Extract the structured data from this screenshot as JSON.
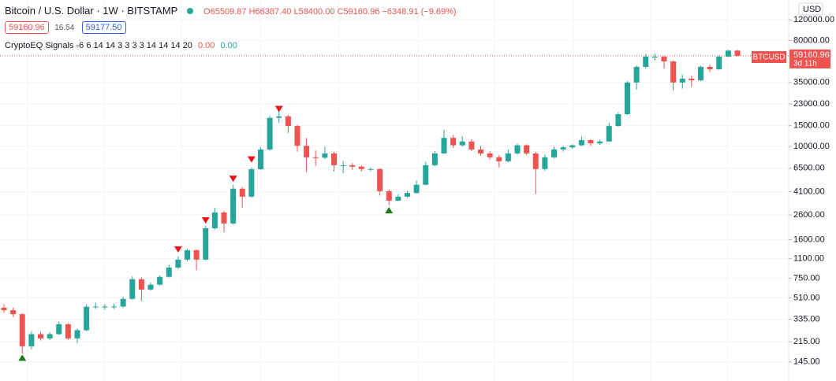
{
  "legend": {
    "title": "Bitcoin / U.S. Dollar · 1W · BITSTAMP",
    "ohlc": [
      "O65509.87",
      "H66387.40",
      "L58400.00",
      "C59160.96",
      "−6348.91 (−9.69%)"
    ],
    "bid": "59160.96",
    "spread": "16.54",
    "ask": "59177.50",
    "indicator": "CryptoEQ Signals",
    "indicator_params": "-6 6 14 14 3 3 3 3 14 14 14 20",
    "indicator_values": [
      "0.00",
      "0.00"
    ]
  },
  "price_scale": {
    "currency": "USD",
    "symbol": "BTCUSD",
    "last_price": "59160.96",
    "countdown": "3d 11h"
  },
  "chart_data": {
    "type": "candlestick",
    "log_scale": true,
    "grid": true,
    "up_color": "#26a69a",
    "down_color": "#ef5350",
    "sell_color": "#e8141c",
    "buy_color": "#1b7a1b",
    "ylim": [
      106,
      177000
    ],
    "yticks": [
      {
        "value": 145,
        "label": "145.00"
      },
      {
        "value": 215,
        "label": "215.00"
      },
      {
        "value": 335,
        "label": "335.00"
      },
      {
        "value": 510,
        "label": "510.00"
      },
      {
        "value": 750,
        "label": "750.00"
      },
      {
        "value": 1100,
        "label": "1100.00"
      },
      {
        "value": 1600,
        "label": "1600.00"
      },
      {
        "value": 2600,
        "label": "2600.00"
      },
      {
        "value": 4100,
        "label": "4100.00"
      },
      {
        "value": 6500,
        "label": "6500.00"
      },
      {
        "value": 10000,
        "label": "10000.00"
      },
      {
        "value": 15000,
        "label": "15000.00"
      },
      {
        "value": 23000,
        "label": "23000.00"
      },
      {
        "value": 35000,
        "label": "35000.00"
      },
      {
        "value": 80000,
        "label": "80000.00"
      },
      {
        "value": 120000,
        "label": "120000.00"
      }
    ],
    "open": [
      420,
      400,
      370,
      197,
      250,
      230,
      250,
      304,
      230,
      270,
      428,
      430,
      430,
      430,
      500,
      735,
      600,
      660,
      770,
      925,
      1080,
      1300,
      1080,
      2000,
      2730,
      2200,
      4350,
      3720,
      6380,
      9400,
      17500,
      18000,
      14900,
      10100,
      8060,
      8000,
      8700,
      6900,
      6900,
      6700,
      6400,
      6400,
      4140,
      3440,
      3720,
      4000,
      4700,
      6900,
      8700,
      11800,
      10200,
      11000,
      9400,
      8700,
      8060,
      7450,
      8700,
      10200,
      8700,
      6400,
      8060,
      9400,
      9800,
      10200,
      11300,
      10600,
      11000,
      14900,
      18800,
      35000,
      47600,
      58200,
      58200,
      53000,
      35000,
      37800,
      36600,
      47600,
      45400,
      58200,
      65509.87
    ],
    "high": [
      450,
      420,
      380,
      265,
      262,
      260,
      320,
      310,
      280,
      450,
      465,
      450,
      455,
      520,
      780,
      760,
      690,
      790,
      980,
      1150,
      1340,
      1320,
      2100,
      2980,
      2800,
      4700,
      4500,
      6600,
      9800,
      18200,
      19700,
      18500,
      15200,
      11800,
      9200,
      9900,
      9000,
      7500,
      7200,
      6900,
      6600,
      6500,
      4300,
      3900,
      4150,
      5100,
      7400,
      9100,
      13800,
      12500,
      12200,
      11500,
      10100,
      9100,
      8400,
      9400,
      10500,
      10400,
      9000,
      8500,
      9900,
      10100,
      10400,
      12000,
      11500,
      11400,
      15900,
      19500,
      36000,
      49000,
      61700,
      61800,
      59000,
      54000,
      41000,
      40000,
      48500,
      50000,
      59500,
      66800,
      66387.4
    ],
    "low": [
      380,
      350,
      170,
      185,
      220,
      222,
      245,
      222,
      210,
      265,
      410,
      405,
      410,
      420,
      490,
      480,
      590,
      650,
      760,
      900,
      1050,
      880,
      1060,
      1950,
      1850,
      2150,
      2980,
      3650,
      6300,
      9200,
      15800,
      13000,
      9000,
      6000,
      6800,
      7800,
      6100,
      5900,
      6300,
      6100,
      6150,
      3800,
      3150,
      3400,
      3650,
      3950,
      4650,
      6800,
      8600,
      9700,
      9900,
      9100,
      8300,
      7700,
      6600,
      7300,
      8500,
      8400,
      3900,
      6200,
      7900,
      9000,
      9500,
      10000,
      10100,
      10300,
      10900,
      14700,
      18500,
      30500,
      46000,
      54000,
      46000,
      30000,
      31000,
      32000,
      36000,
      43000,
      45000,
      57500,
      58400.0
    ],
    "close": [
      400,
      370,
      197,
      250,
      230,
      250,
      304,
      230,
      270,
      428,
      430,
      430,
      430,
      500,
      735,
      600,
      660,
      770,
      925,
      1080,
      1300,
      1080,
      2000,
      2730,
      2200,
      4350,
      3720,
      6380,
      9400,
      17500,
      18000,
      14900,
      10100,
      8060,
      8000,
      8700,
      6900,
      6900,
      6700,
      6400,
      6400,
      4140,
      3440,
      3720,
      4000,
      4700,
      6900,
      8700,
      11800,
      10200,
      11000,
      9400,
      8700,
      8060,
      7450,
      8700,
      10200,
      8700,
      6400,
      8060,
      9400,
      9800,
      10200,
      11300,
      10600,
      11000,
      14900,
      18800,
      35000,
      47600,
      58200,
      58200,
      53000,
      35000,
      37800,
      36600,
      47600,
      45400,
      58200,
      65509.87,
      59160.96
    ],
    "sell_signals": [
      null,
      null,
      null,
      null,
      null,
      null,
      null,
      null,
      null,
      null,
      null,
      null,
      null,
      null,
      null,
      null,
      null,
      null,
      null,
      1300,
      null,
      null,
      2300,
      null,
      null,
      5200,
      null,
      7600,
      null,
      null,
      20500,
      null,
      null,
      null,
      null,
      null,
      null,
      null,
      null,
      null,
      null,
      null,
      null,
      null,
      null,
      null,
      null,
      null,
      null,
      null,
      null,
      null,
      null,
      null,
      null,
      null,
      null,
      null,
      null,
      null,
      null,
      null,
      null,
      null,
      null,
      null,
      null,
      null,
      null,
      null,
      null,
      null,
      null,
      null,
      null,
      null,
      null,
      null,
      null,
      null,
      null
    ],
    "buy_signals": [
      null,
      null,
      160,
      null,
      null,
      null,
      null,
      null,
      null,
      null,
      null,
      null,
      null,
      null,
      null,
      null,
      null,
      null,
      null,
      null,
      null,
      null,
      null,
      null,
      null,
      null,
      null,
      null,
      null,
      null,
      null,
      null,
      null,
      null,
      null,
      null,
      null,
      null,
      null,
      null,
      null,
      null,
      2900,
      null,
      null,
      null,
      null,
      null,
      null,
      null,
      null,
      null,
      null,
      null,
      null,
      null,
      null,
      null,
      null,
      null,
      null,
      null,
      null,
      null,
      null,
      null,
      null,
      null,
      null,
      null,
      null,
      null,
      null,
      null,
      null,
      null,
      null,
      null,
      null,
      null,
      null
    ]
  }
}
